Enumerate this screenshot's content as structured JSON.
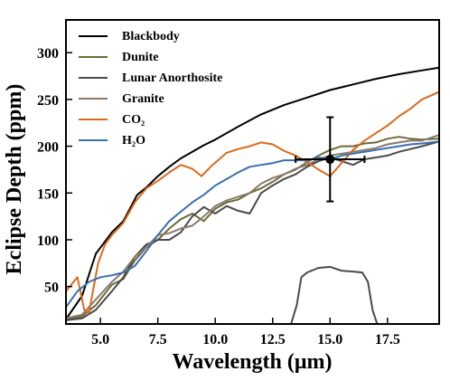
{
  "chart_data": {
    "type": "line",
    "xlabel": "Wavelength (μm)",
    "ylabel": "Eclipse Depth (ppm)",
    "xlim": [
      3.5,
      19.75
    ],
    "ylim": [
      10,
      335
    ],
    "xticks": [
      5.0,
      7.5,
      10.0,
      12.5,
      15.0,
      17.5
    ],
    "xtick_labels": [
      "5.0",
      "7.5",
      "10.0",
      "12.5",
      "15.0",
      "17.5"
    ],
    "yticks": [
      50,
      100,
      150,
      200,
      250,
      300
    ],
    "ytick_labels": [
      "50",
      "100",
      "150",
      "200",
      "250",
      "300"
    ],
    "grid": false,
    "legend_position": "top-left",
    "series": [
      {
        "name": "Blackbody",
        "color": "#000000",
        "x": [
          3.5,
          4.2,
          4.8,
          5.5,
          6.0,
          6.6,
          7.0,
          7.5,
          8.0,
          8.5,
          9.0,
          9.5,
          10.0,
          11.0,
          12.0,
          13.0,
          14.0,
          15.0,
          16.0,
          17.0,
          18.0,
          19.0,
          19.75
        ],
        "y": [
          15,
          40,
          85,
          108,
          120,
          148,
          156,
          168,
          178,
          187,
          194,
          201,
          207,
          221,
          234,
          244,
          252,
          260,
          266,
          272,
          277,
          281,
          284
        ]
      },
      {
        "name": "Dunite",
        "color": "#6b6b3a",
        "x": [
          3.5,
          4.2,
          4.8,
          5.5,
          6.0,
          6.5,
          7.0,
          7.5,
          8.0,
          8.5,
          9.0,
          9.5,
          10.0,
          10.5,
          11.0,
          11.5,
          12.0,
          12.5,
          13.0,
          13.5,
          14.0,
          14.5,
          15.0,
          15.5,
          16.0,
          16.5,
          17.0,
          17.5,
          18.0,
          18.5,
          19.0,
          19.75
        ],
        "y": [
          15,
          18,
          30,
          52,
          58,
          78,
          92,
          100,
          112,
          122,
          128,
          120,
          133,
          140,
          143,
          150,
          155,
          162,
          170,
          175,
          183,
          190,
          196,
          200,
          200,
          203,
          204,
          208,
          210,
          208,
          207,
          208
        ]
      },
      {
        "name": "Lunar Anorthosite",
        "color": "#4a4a4a",
        "x": [
          3.5,
          4.2,
          4.8,
          5.5,
          6.0,
          6.5,
          7.0,
          7.5,
          8.0,
          8.5,
          9.0,
          9.5,
          10.0,
          10.5,
          11.0,
          11.5,
          12.0,
          12.5,
          13.0,
          13.5,
          14.0,
          14.5,
          15.0,
          15.5,
          16.0,
          16.5,
          17.0,
          17.5,
          18.0,
          18.5,
          19.0,
          19.75
        ],
        "y": [
          14,
          16,
          25,
          45,
          60,
          82,
          95,
          100,
          100,
          108,
          125,
          135,
          128,
          136,
          131,
          128,
          150,
          158,
          165,
          170,
          178,
          184,
          188,
          184,
          180,
          186,
          188,
          190,
          194,
          197,
          200,
          205
        ]
      },
      {
        "name": "Granite",
        "color": "#8a7a6a",
        "x": [
          3.5,
          4.2,
          4.8,
          5.5,
          6.0,
          6.5,
          7.0,
          7.5,
          8.0,
          8.5,
          9.0,
          9.5,
          10.0,
          10.5,
          11.0,
          11.5,
          12.0,
          12.5,
          13.0,
          13.5,
          14.0,
          14.5,
          15.0,
          15.5,
          16.0,
          16.5,
          17.0,
          17.5,
          18.0,
          18.5,
          19.0,
          19.75
        ],
        "y": [
          16,
          20,
          36,
          55,
          66,
          82,
          92,
          105,
          107,
          112,
          115,
          125,
          136,
          142,
          146,
          150,
          160,
          166,
          170,
          176,
          180,
          186,
          190,
          192,
          194,
          196,
          198,
          202,
          204,
          206,
          206,
          212
        ]
      },
      {
        "name": "CO₂",
        "color": "#d96a1c",
        "x": [
          3.5,
          4.0,
          4.3,
          4.5,
          4.9,
          5.2,
          5.5,
          6.0,
          6.5,
          7.0,
          7.5,
          8.0,
          8.5,
          9.0,
          9.4,
          9.8,
          10.5,
          11.0,
          11.5,
          12.0,
          12.5,
          13.0,
          13.5,
          14.0,
          14.5,
          15.0,
          15.5,
          16.0,
          16.5,
          17.0,
          17.5,
          18.0,
          18.5,
          19.0,
          19.75
        ],
        "y": [
          45,
          60,
          25,
          22,
          75,
          95,
          105,
          118,
          140,
          155,
          163,
          172,
          180,
          176,
          168,
          178,
          193,
          197,
          200,
          204,
          202,
          195,
          190,
          183,
          175,
          168,
          182,
          196,
          206,
          214,
          222,
          232,
          240,
          250,
          258
        ]
      },
      {
        "name": "H₂O",
        "color": "#3a6fb0",
        "x": [
          3.5,
          4.0,
          4.5,
          5.0,
          5.5,
          6.0,
          6.5,
          7.0,
          7.5,
          8.0,
          8.5,
          9.0,
          9.5,
          10.0,
          10.5,
          11.0,
          11.5,
          12.0,
          12.5,
          13.0,
          13.5,
          14.0,
          14.5,
          15.0,
          15.5,
          16.0,
          16.5,
          17.0,
          17.5,
          18.0,
          18.5,
          19.0,
          19.75
        ],
        "y": [
          28,
          45,
          55,
          60,
          62,
          65,
          72,
          88,
          105,
          120,
          130,
          140,
          148,
          158,
          165,
          172,
          178,
          180,
          182,
          185,
          185,
          185,
          188,
          186,
          190,
          192,
          194,
          196,
          198,
          200,
          202,
          203,
          205
        ]
      }
    ],
    "bandpass": {
      "color": "#4a4a4a",
      "x": [
        13.3,
        13.55,
        13.75,
        14.0,
        14.5,
        15.0,
        15.5,
        16.0,
        16.4,
        16.65,
        16.85,
        17.05
      ],
      "y": [
        10,
        30,
        60,
        65,
        70,
        71,
        67,
        66,
        65,
        55,
        25,
        10
      ]
    },
    "measurement": {
      "x": 15.0,
      "y": 186,
      "xerr_low": 13.5,
      "xerr_high": 16.5,
      "yerr_low": 141,
      "yerr_high": 231,
      "color": "#000000"
    }
  }
}
